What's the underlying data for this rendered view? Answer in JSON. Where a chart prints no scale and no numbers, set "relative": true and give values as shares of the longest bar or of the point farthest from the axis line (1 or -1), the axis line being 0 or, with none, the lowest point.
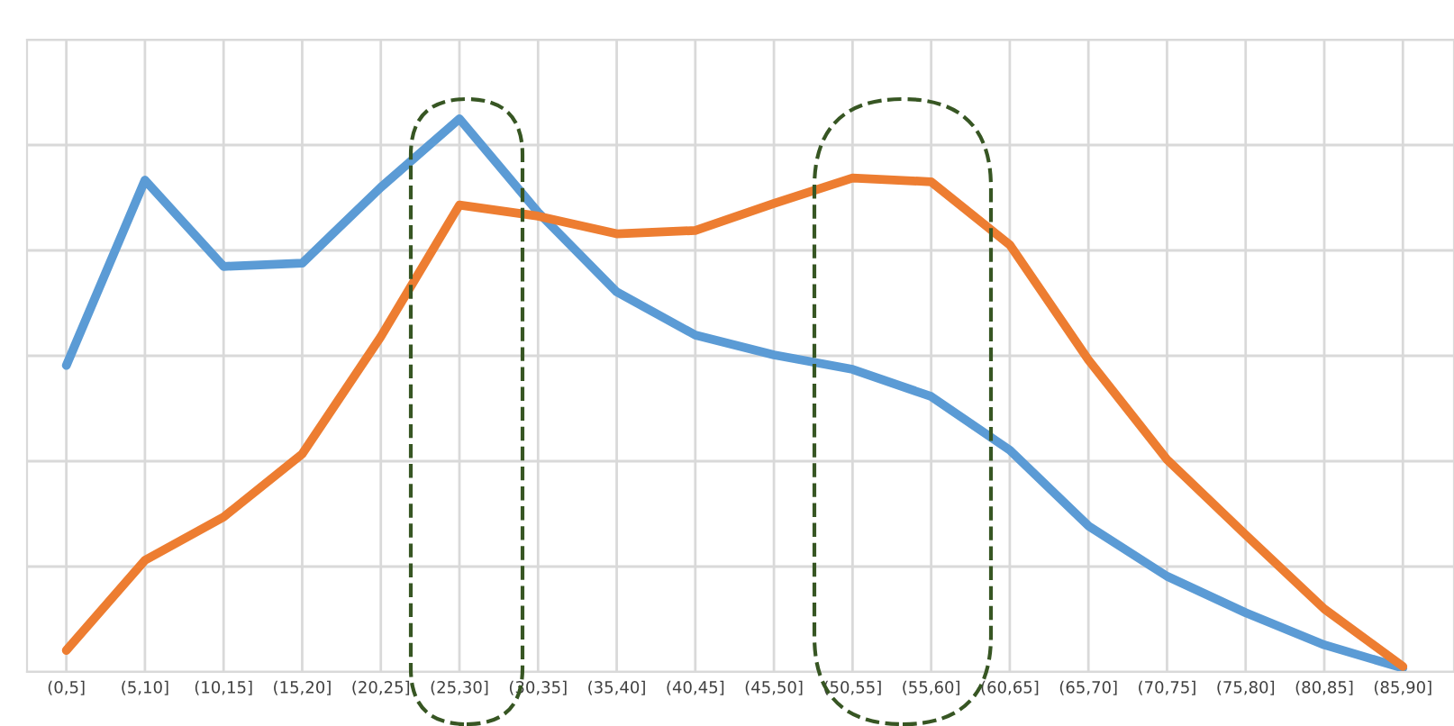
{
  "chart_data": {
    "type": "line",
    "relative": true,
    "grid": true,
    "marker": "none",
    "line_style": "solid",
    "legend": false,
    "categories": [
      "(0,5]",
      "(5,10]",
      "(10,15]",
      "(15,20]",
      "(20,25]",
      "(25,30]",
      "(30,35]",
      "(35,40]",
      "(40,45]",
      "(45,50]",
      "(50,55]",
      "(55,60]",
      "(60,65]",
      "(65,70]",
      "(70,75]",
      "(75,80]",
      "(80,85]",
      "(85,90]"
    ],
    "series": [
      {
        "color": "#5b9bd5",
        "values": [
          0.554,
          0.889,
          0.733,
          0.739,
          0.876,
          1,
          0.831,
          0.687,
          0.609,
          0.573,
          0.547,
          0.498,
          0.401,
          0.264,
          0.173,
          0.107,
          0.049,
          0.007
        ]
      },
      {
        "color": "#ed7d31",
        "values": [
          0.039,
          0.202,
          0.28,
          0.394,
          0.606,
          0.844,
          0.824,
          0.792,
          0.798,
          0.847,
          0.893,
          0.886,
          0.772,
          0.564,
          0.384,
          0.248,
          0.114,
          0.01
        ]
      }
    ]
  }
}
